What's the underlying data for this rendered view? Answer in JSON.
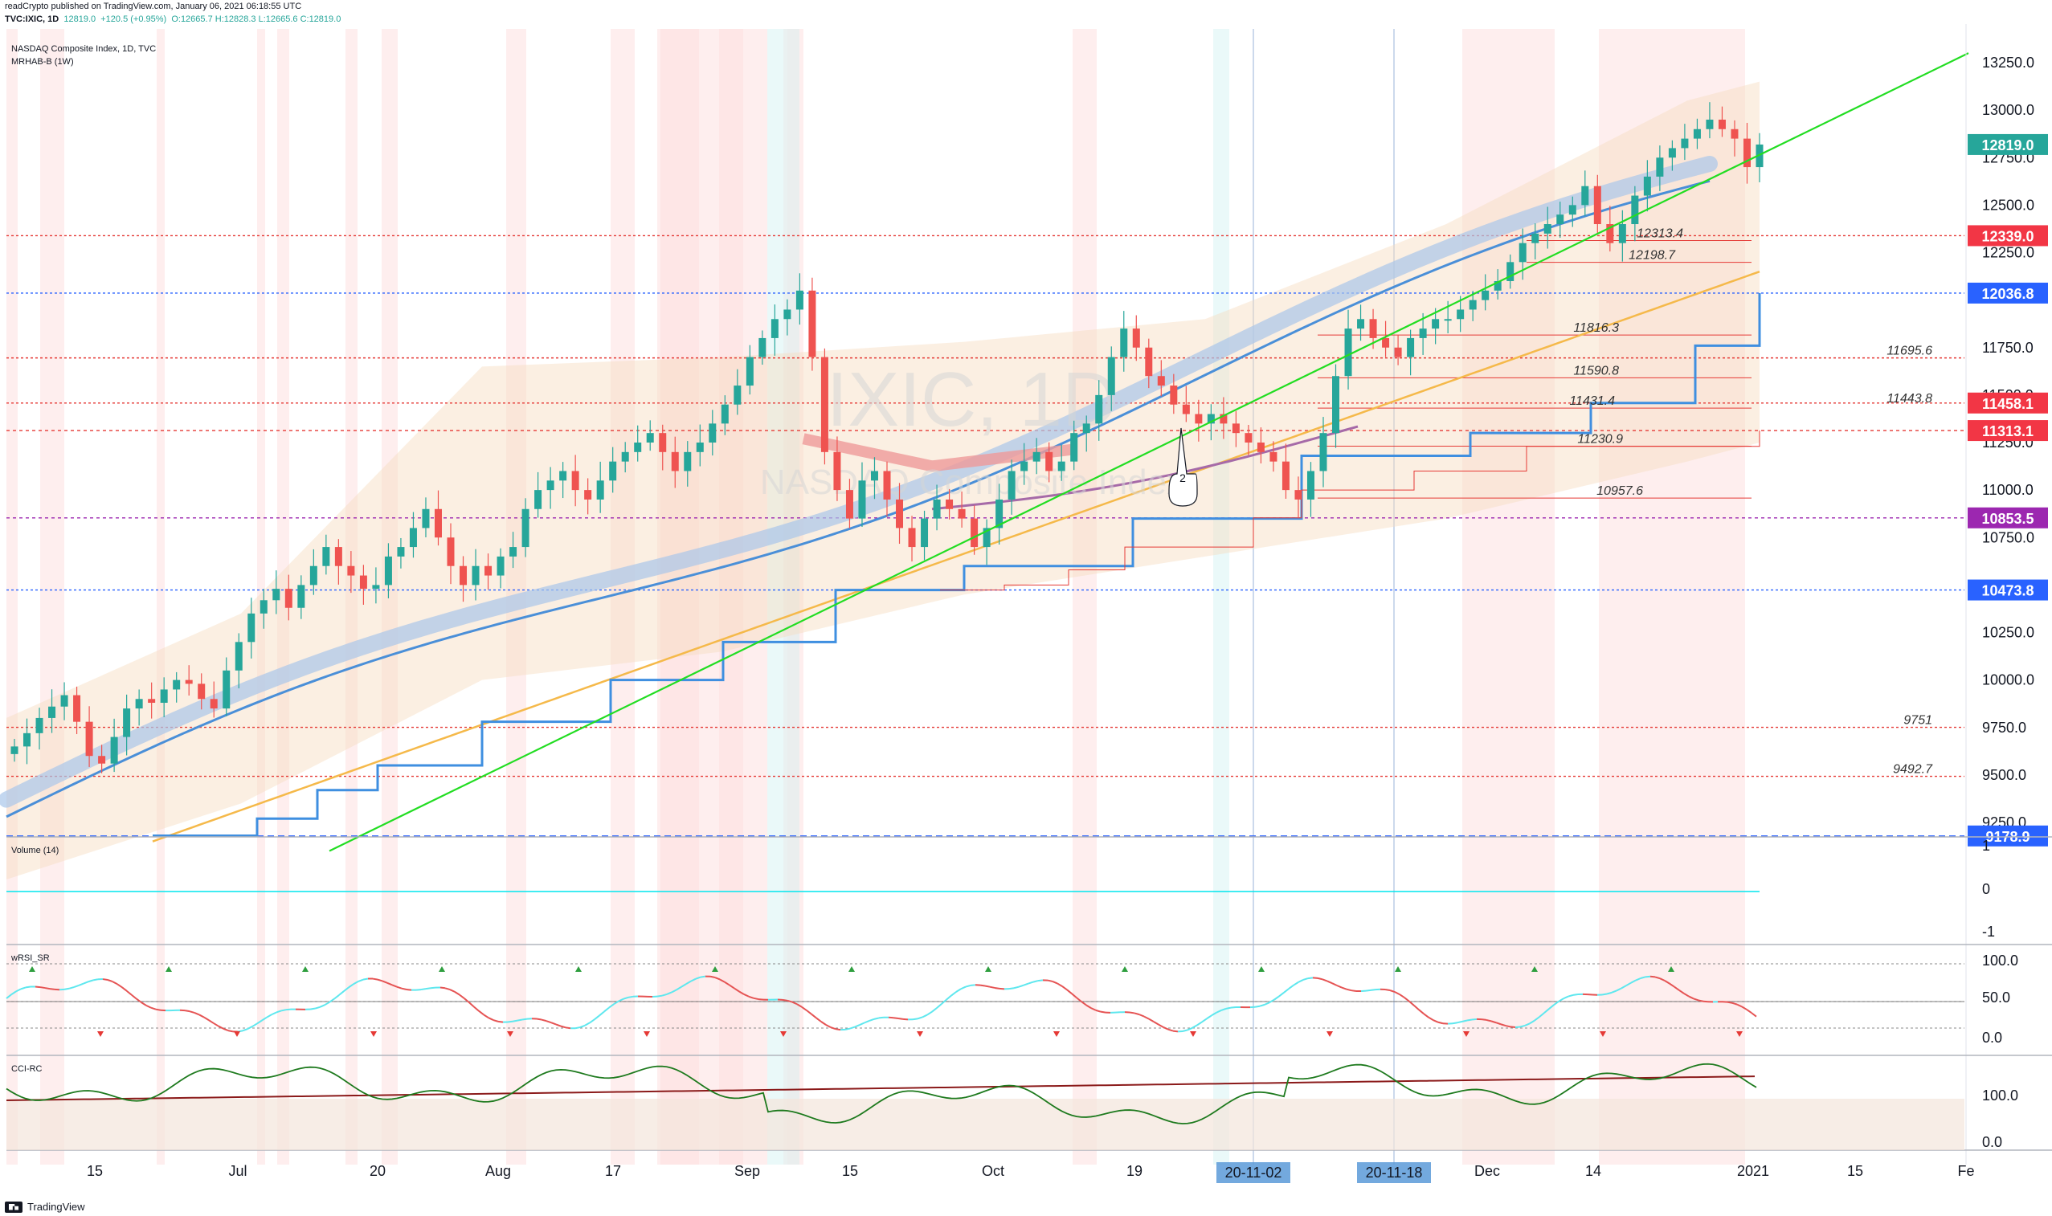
{
  "header": {
    "published": "readCrypto published on TradingView.com, January 06, 2021 06:18:55 UTC",
    "symbol": "TVC:IXIC, 1D",
    "last": "12819.0",
    "change": "+120.5 (+0.95%)",
    "ohlc": "O:12665.7 H:12828.3 L:12665.6 C:12819.0"
  },
  "pane_titles": {
    "main": "NASDAQ Composite Index, 1D, TVC",
    "indicator": "MRHAB-B (1W)",
    "volume": "Volume (14)",
    "rsi": "wRSI_SR",
    "cci": "CCI-RC"
  },
  "watermark": {
    "symbol": "IXIC, 1D",
    "name": "NASDAQ Composite Index"
  },
  "branding": "TradingView",
  "colors": {
    "up": "#26a69a",
    "down": "#ef5350",
    "trendline": "#22dd22",
    "ma_blue": "#4a8fd8",
    "ma_orange": "#f5b94a",
    "ma_purple": "#a66aa8",
    "support_red": "#e53935",
    "price_tag_green": "#26a69a",
    "price_tag_red": "#f23645",
    "price_tag_blue": "#2962ff",
    "price_tag_purple": "#9c27b0"
  },
  "chart_data": {
    "type": "candlestick",
    "price_scale": {
      "ticks": [
        "13250.0",
        "13000.0",
        "12750.0",
        "12500.0",
        "12250.0",
        "11750.0",
        "11500.0",
        "11250.0",
        "11000.0",
        "10750.0",
        "10250.0",
        "10000.0",
        "9750.0",
        "9500.0",
        "9250.0"
      ],
      "range": [
        9100,
        13350
      ]
    },
    "time_axis": [
      "15",
      "Jul",
      "20",
      "Aug",
      "17",
      "Sep",
      "15",
      "Oct",
      "19",
      "Dec",
      "14",
      "2021",
      "15",
      "Fe"
    ],
    "time_highlights": [
      "20-11-02",
      "20-11-18"
    ],
    "price_tags": [
      {
        "label": "12819.0",
        "value": 12819.0,
        "color": "#26a69a"
      },
      {
        "label": "12339.0",
        "value": 12339.0,
        "color": "#f23645"
      },
      {
        "label": "12036.8",
        "value": 12036.8,
        "color": "#2962ff"
      },
      {
        "label": "11458.1",
        "value": 11458.1,
        "color": "#f23645"
      },
      {
        "label": "11313.1",
        "value": 11313.1,
        "color": "#f23645"
      },
      {
        "label": "10853.5",
        "value": 10853.5,
        "color": "#9c27b0"
      },
      {
        "label": "10473.8",
        "value": 10473.8,
        "color": "#2962ff"
      },
      {
        "label": "9178.9",
        "value": 9178.9,
        "color": "#2962ff"
      }
    ],
    "level_labels": [
      {
        "label": "12313.4",
        "value": 12313.4
      },
      {
        "label": "12198.7",
        "value": 12198.7
      },
      {
        "label": "11816.3",
        "value": 11816.3
      },
      {
        "label": "11695.6",
        "value": 11695.6
      },
      {
        "label": "11590.8",
        "value": 11590.8
      },
      {
        "label": "11443.8",
        "value": 11443.8
      },
      {
        "label": "11431.4",
        "value": 11431.4
      },
      {
        "label": "11230.9",
        "value": 11230.9
      },
      {
        "label": "10957.6",
        "value": 10957.6
      },
      {
        "label": "9751",
        "value": 9751
      },
      {
        "label": "9492.7",
        "value": 9492.7
      }
    ],
    "annotation": "2",
    "closes": [
      9650,
      9720,
      9800,
      9860,
      9920,
      9780,
      9600,
      9560,
      9700,
      9850,
      9900,
      9880,
      9950,
      10000,
      9980,
      9900,
      9850,
      10050,
      10200,
      10350,
      10420,
      10480,
      10380,
      10500,
      10600,
      10700,
      10600,
      10550,
      10480,
      10500,
      10650,
      10700,
      10800,
      10900,
      10750,
      10600,
      10500,
      10600,
      10550,
      10650,
      10700,
      10900,
      11000,
      11050,
      11100,
      11000,
      10950,
      11050,
      11150,
      11200,
      11250,
      11300,
      11200,
      11100,
      11200,
      11250,
      11350,
      11450,
      11550,
      11700,
      11800,
      11900,
      11950,
      12050,
      11700,
      11200,
      11000,
      10850,
      11050,
      11100,
      10950,
      10800,
      10700,
      10850,
      10950,
      10900,
      10850,
      10700,
      10800,
      10950,
      11100,
      11150,
      11200,
      11100,
      11150,
      11300,
      11350,
      11500,
      11700,
      11850,
      11750,
      11600,
      11550,
      11450,
      11400,
      11350,
      11400,
      11350,
      11300,
      11250,
      11200,
      11150,
      11000,
      10950,
      11100,
      11300,
      11600,
      11850,
      11900,
      11800,
      11750,
      11700,
      11800,
      11850,
      11900,
      11900,
      11950,
      12000,
      12050,
      12100,
      12200,
      12300,
      12350,
      12400,
      12450,
      12500,
      12600,
      12400,
      12300,
      12400,
      12550,
      12650,
      12750,
      12800,
      12850,
      12900,
      12950,
      12900,
      12850,
      12700,
      12819
    ],
    "volume": {
      "ticks": [
        "1",
        "0",
        "-1"
      ],
      "values": [
        0
      ]
    },
    "wrsi": {
      "ticks": [
        "100.0",
        "50.0",
        "0.0"
      ],
      "last": 43
    },
    "cci": {
      "ticks": [
        "100.0",
        "0.0"
      ]
    }
  }
}
